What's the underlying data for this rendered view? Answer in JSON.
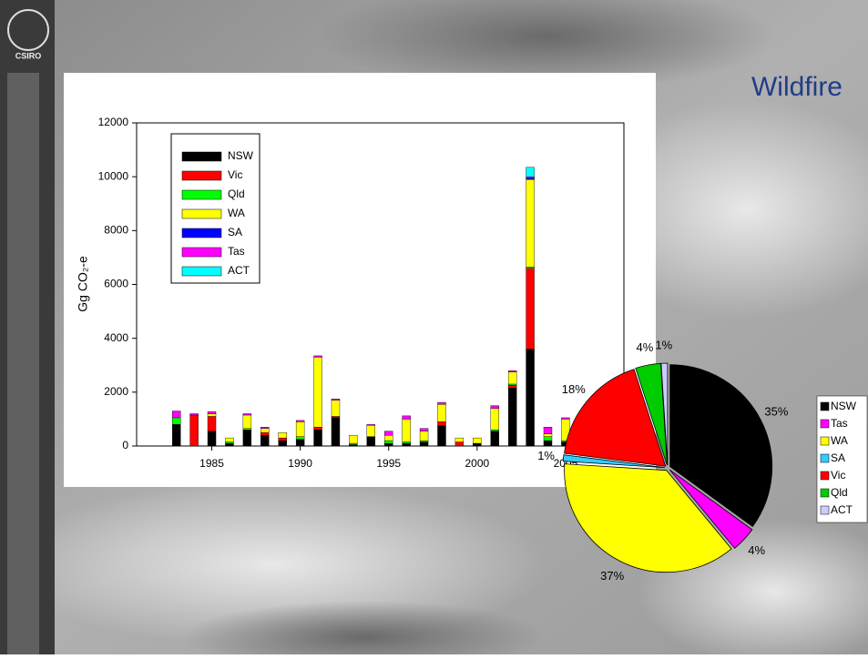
{
  "slide": {
    "title": "Wildfire",
    "logo": "CSIRO"
  },
  "chart_data": [
    {
      "type": "bar",
      "stacked": true,
      "y_label": "Gg CO₂-e",
      "x": [
        1983,
        1984,
        1985,
        1986,
        1987,
        1988,
        1989,
        1990,
        1991,
        1992,
        1993,
        1994,
        1995,
        1996,
        1997,
        1998,
        1999,
        2000,
        2001,
        2002,
        2003,
        2004,
        2005
      ],
      "xlim": [
        1980.75,
        2008.3
      ],
      "xticks": [
        1985,
        1990,
        1995,
        2000,
        2005
      ],
      "ylim": [
        0,
        12000
      ],
      "yticks": [
        0,
        2000,
        4000,
        6000,
        8000,
        10000,
        12000
      ],
      "legend": "top-left",
      "series": [
        {
          "name": "NSW",
          "color": "#000000",
          "values": [
            800,
            0,
            550,
            100,
            600,
            400,
            200,
            250,
            600,
            1050,
            50,
            350,
            100,
            100,
            150,
            750,
            0,
            100,
            550,
            2150,
            3600,
            200,
            150
          ]
        },
        {
          "name": "Vic",
          "color": "#ff0000",
          "values": [
            0,
            1150,
            550,
            0,
            0,
            100,
            100,
            0,
            100,
            50,
            0,
            0,
            0,
            0,
            0,
            150,
            150,
            0,
            0,
            100,
            3000,
            0,
            0
          ]
        },
        {
          "name": "Qld",
          "color": "#00ff00",
          "values": [
            250,
            0,
            0,
            50,
            50,
            0,
            0,
            100,
            0,
            0,
            50,
            0,
            100,
            50,
            50,
            0,
            0,
            0,
            50,
            50,
            50,
            150,
            50
          ]
        },
        {
          "name": "WA",
          "color": "#ffff00",
          "values": [
            0,
            0,
            100,
            150,
            500,
            150,
            200,
            550,
            2600,
            600,
            300,
            420,
            200,
            850,
            350,
            650,
            150,
            200,
            800,
            450,
            3250,
            100,
            800
          ]
        },
        {
          "name": "SA",
          "color": "#0000ff",
          "values": [
            0,
            0,
            0,
            0,
            0,
            0,
            0,
            0,
            0,
            0,
            0,
            0,
            0,
            0,
            0,
            0,
            0,
            0,
            0,
            0,
            50,
            0,
            0
          ]
        },
        {
          "name": "Tas",
          "color": "#ff00ff",
          "values": [
            250,
            50,
            80,
            0,
            50,
            50,
            0,
            50,
            50,
            50,
            0,
            30,
            150,
            120,
            100,
            70,
            0,
            0,
            100,
            50,
            50,
            250,
            50
          ]
        },
        {
          "name": "ACT",
          "color": "#00ffff",
          "values": [
            0,
            0,
            0,
            0,
            0,
            0,
            0,
            0,
            0,
            0,
            0,
            0,
            0,
            0,
            0,
            0,
            0,
            0,
            0,
            0,
            350,
            0,
            0
          ]
        }
      ]
    },
    {
      "type": "pie",
      "categories": [
        "NSW",
        "Tas",
        "WA",
        "SA",
        "Vic",
        "Qld",
        "ACT"
      ],
      "values": [
        35,
        4,
        37,
        1,
        18,
        4,
        1
      ],
      "value_labels": [
        "35%",
        "4%",
        "37%",
        "1%",
        "18%",
        "4%",
        "1%"
      ],
      "colors": [
        "#000000",
        "#ff00ff",
        "#ffff00",
        "#33ccff",
        "#ff0000",
        "#00cc00",
        "#ccccff"
      ],
      "legend": "right"
    }
  ]
}
